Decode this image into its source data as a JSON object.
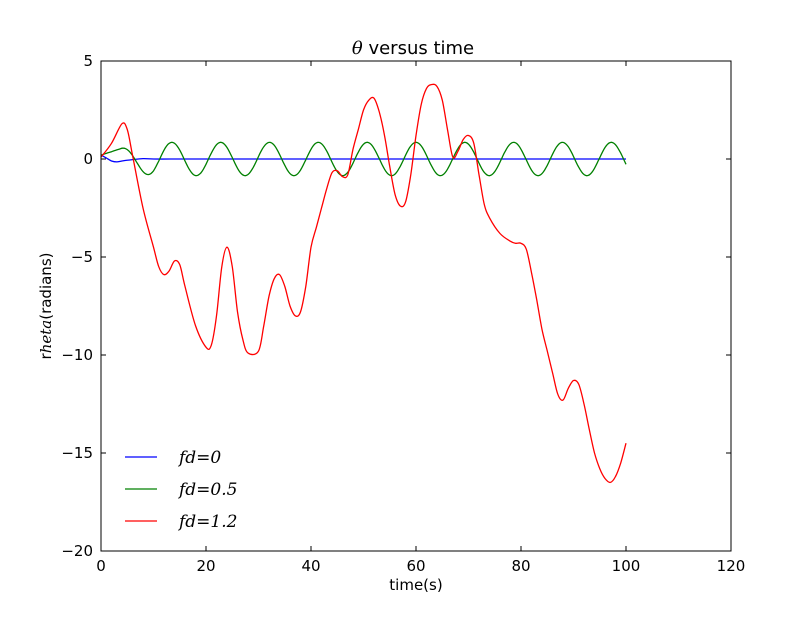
{
  "chart_data": {
    "type": "line",
    "title": "θ versus time",
    "title_symbol": "θ",
    "title_rest": " versus time",
    "xlabel": "time(s)",
    "ylabel_prefix": "r",
    "ylabel_italic": "heta",
    "ylabel_suffix": "(radians)",
    "xlim": [
      0,
      120
    ],
    "ylim": [
      -20,
      5
    ],
    "xticks": [
      "0",
      "20",
      "40",
      "60",
      "80",
      "100",
      "120"
    ],
    "yticks": [
      "5",
      "0",
      "−5",
      "−10",
      "−15",
      "−20"
    ],
    "legend_position": "lower-left",
    "series": [
      {
        "name": "fd=0",
        "color": "#0000ff",
        "x": [
          0,
          1,
          2,
          3,
          4,
          6,
          8,
          10,
          15,
          20,
          30,
          40,
          50,
          60,
          70,
          80,
          90,
          100
        ],
        "y": [
          0.2,
          0.05,
          -0.1,
          -0.15,
          -0.1,
          -0.03,
          0.02,
          0.0,
          0.0,
          0.0,
          0.0,
          0.0,
          0.0,
          0.0,
          0.0,
          0.0,
          0.0,
          0.0
        ]
      },
      {
        "name": "fd=0.5",
        "color": "#008000",
        "period": 9.3,
        "amplitude": 0.85,
        "x": [
          0,
          2,
          4,
          100
        ],
        "y": [
          0.2,
          0.35,
          0.55,
          -0.1
        ]
      },
      {
        "name": "fd=1.2",
        "color": "#ff0000",
        "x": [
          0,
          2,
          4,
          5,
          6,
          8,
          10,
          11,
          12,
          13,
          14,
          15,
          16,
          18,
          20,
          21,
          22,
          23,
          24,
          25,
          26,
          27,
          28,
          30,
          31,
          32,
          33,
          34,
          35,
          36,
          37,
          38,
          39,
          40,
          41,
          42,
          43,
          44,
          45,
          46,
          47,
          48,
          49,
          50,
          51,
          52,
          53,
          54,
          55,
          56,
          57,
          58,
          59,
          60,
          61,
          62,
          63,
          64,
          65,
          66,
          67,
          68,
          69,
          70,
          71,
          72,
          73,
          74,
          76,
          78,
          79,
          80,
          81,
          82,
          83,
          84,
          85,
          86,
          87,
          88,
          89,
          90,
          91,
          92,
          93,
          94,
          95,
          96,
          97,
          98,
          99,
          100
        ],
        "y": [
          0.1,
          0.8,
          1.8,
          1.5,
          0.2,
          -2.5,
          -4.5,
          -5.5,
          -5.9,
          -5.7,
          -5.2,
          -5.4,
          -6.5,
          -8.5,
          -9.6,
          -9.5,
          -8.0,
          -5.5,
          -4.5,
          -5.5,
          -7.8,
          -9.2,
          -9.9,
          -9.8,
          -8.5,
          -7.0,
          -6.1,
          -5.9,
          -6.5,
          -7.5,
          -8.0,
          -7.8,
          -6.5,
          -4.5,
          -3.5,
          -2.5,
          -1.5,
          -0.7,
          -0.6,
          -0.9,
          -0.8,
          0.5,
          1.5,
          2.5,
          3.0,
          3.1,
          2.4,
          1.2,
          -0.4,
          -1.8,
          -2.4,
          -2.2,
          -0.8,
          1.2,
          2.8,
          3.6,
          3.8,
          3.7,
          3.0,
          1.5,
          0.1,
          0.4,
          1.0,
          1.2,
          0.8,
          -0.8,
          -2.3,
          -3.0,
          -3.8,
          -4.2,
          -4.3,
          -4.3,
          -4.6,
          -5.8,
          -7.2,
          -8.7,
          -9.8,
          -10.9,
          -12.0,
          -12.3,
          -11.7,
          -11.3,
          -11.5,
          -12.5,
          -13.8,
          -15.0,
          -15.8,
          -16.3,
          -16.5,
          -16.2,
          -15.5,
          -14.5
        ]
      }
    ]
  }
}
